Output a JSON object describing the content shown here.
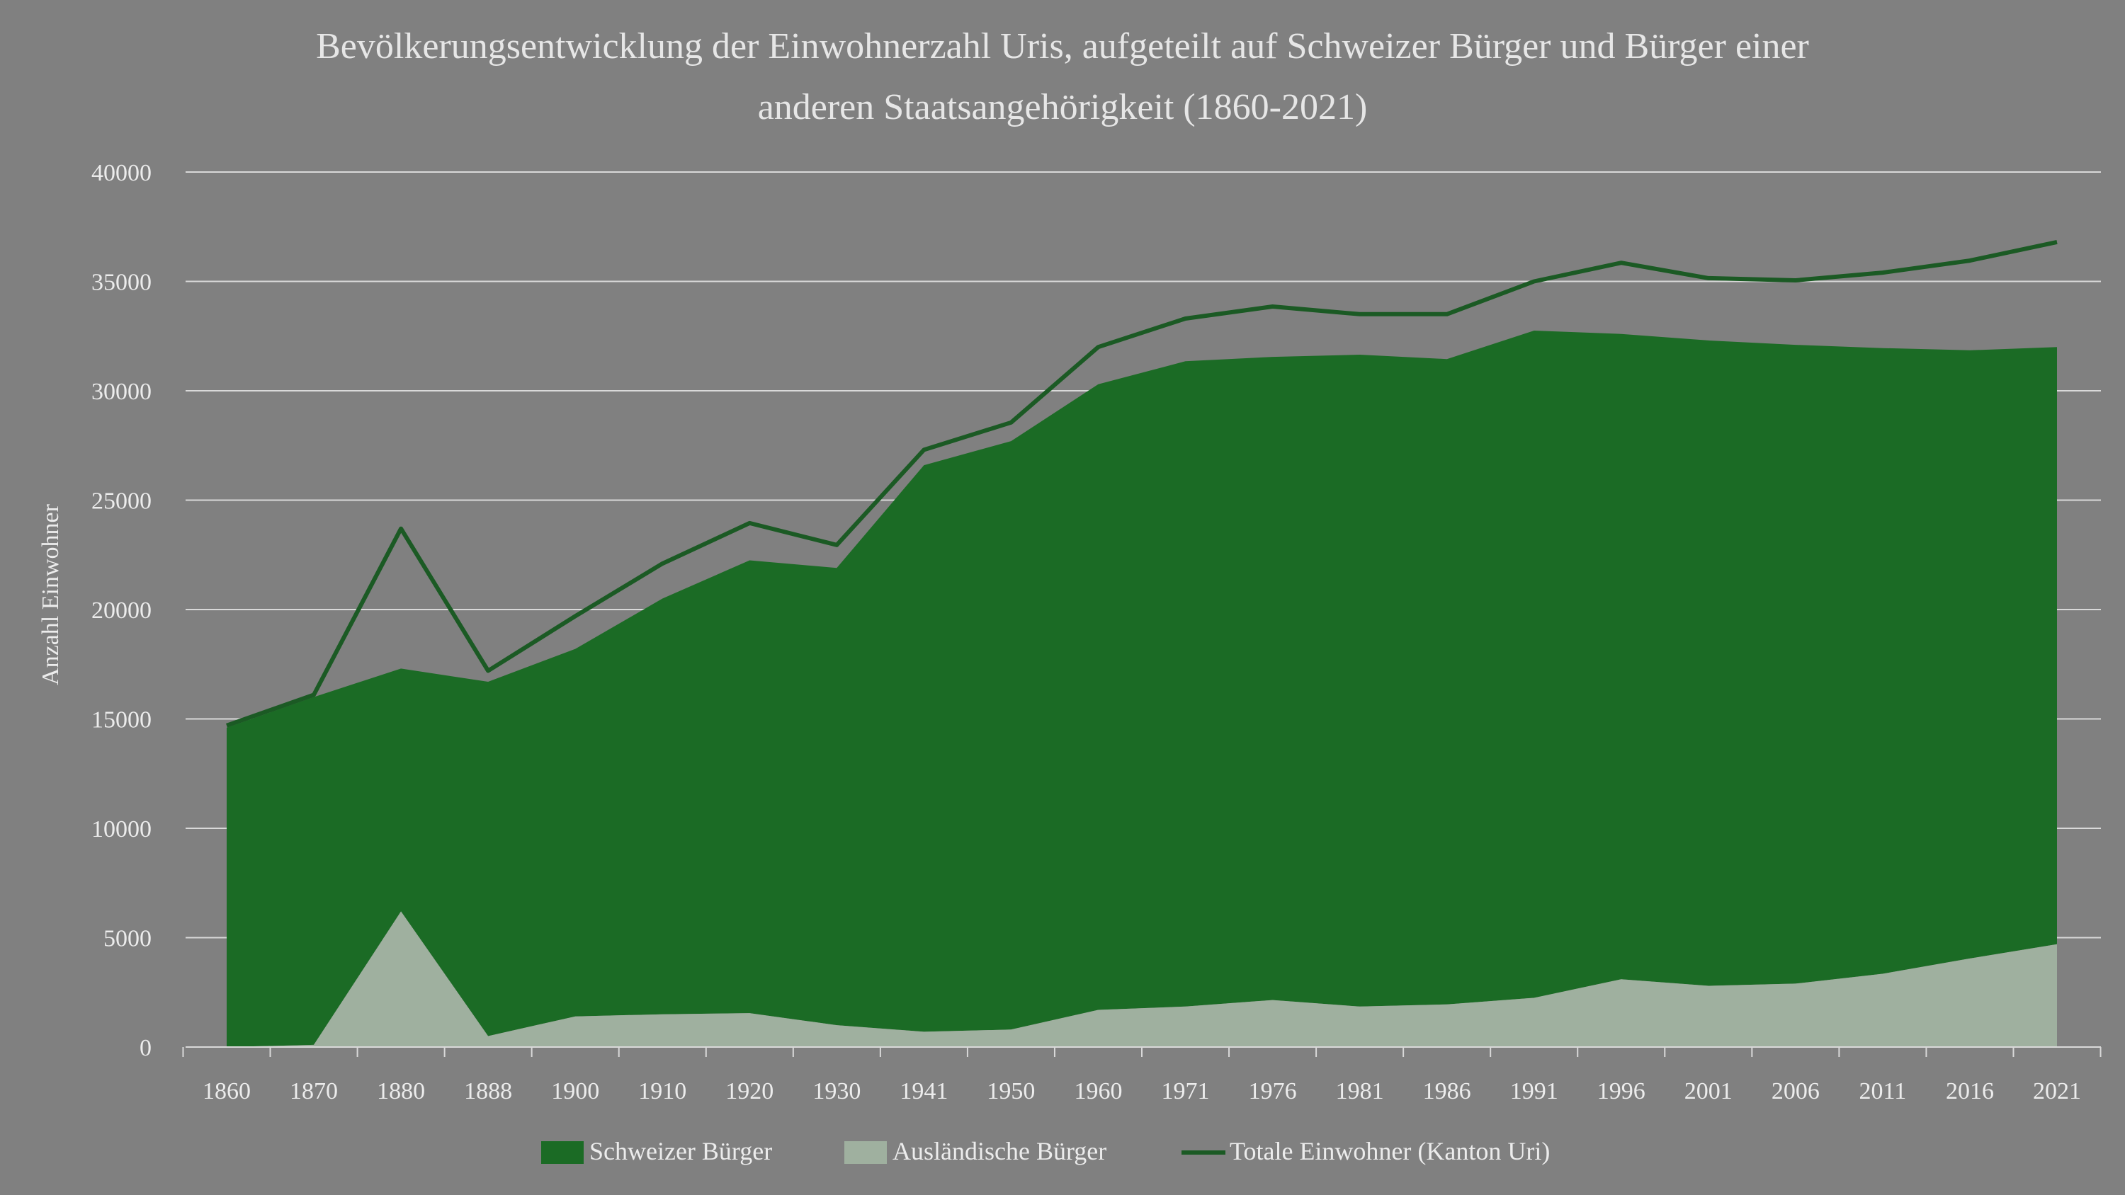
{
  "colors": {
    "background": "#808080",
    "swiss": "#1b6b25",
    "foreign": "#9fb09f",
    "total": "#1b5a24",
    "grid": "#d9d9d9",
    "text": "#ececec"
  },
  "chart_data": {
    "type": "area",
    "title_line1": "Bevölkerungsentwicklung der Einwohnerzahl Uris, aufgeteilt auf Schweizer Bürger und Bürger einer",
    "title_line2": "anderen Staatsangehörigkeit (1860-2021)",
    "xlabel": "",
    "ylabel": "Anzahl Einwohner",
    "ylim": [
      0,
      40000
    ],
    "yticks": [
      "0",
      "5000",
      "10000",
      "15000",
      "20000",
      "25000",
      "30000",
      "35000",
      "40000"
    ],
    "grid": true,
    "legend_position": "bottom",
    "categories": [
      "1860",
      "1870",
      "1880",
      "1888",
      "1900",
      "1910",
      "1920",
      "1930",
      "1941",
      "1950",
      "1960",
      "1971",
      "1976",
      "1981",
      "1986",
      "1991",
      "1996",
      "2001",
      "2006",
      "2011",
      "2016",
      "2021"
    ],
    "series": [
      {
        "name": "Schweizer Bürger",
        "kind": "area",
        "values": [
          14600,
          15900,
          11100,
          16200,
          16800,
          19000,
          20700,
          20900,
          25900,
          26900,
          28600,
          29500,
          29400,
          29800,
          29500,
          30500,
          29500,
          29500,
          29200,
          28600,
          27800,
          27300
        ]
      },
      {
        "name": "Ausländische Bürger",
        "kind": "area",
        "values": [
          0,
          100,
          6200,
          500,
          1400,
          1500,
          1550,
          1000,
          700,
          800,
          1700,
          1850,
          2150,
          1850,
          1950,
          2250,
          3100,
          2800,
          2900,
          3350,
          4050,
          4700
        ]
      },
      {
        "name": "Totale Einwohner (Kanton Uri)",
        "kind": "line",
        "values": [
          14700,
          16100,
          23700,
          17200,
          19700,
          22100,
          23950,
          22950,
          27300,
          28550,
          32000,
          33300,
          33850,
          33500,
          33500,
          35000,
          35850,
          35150,
          35050,
          35400,
          35950,
          36800
        ]
      }
    ]
  }
}
